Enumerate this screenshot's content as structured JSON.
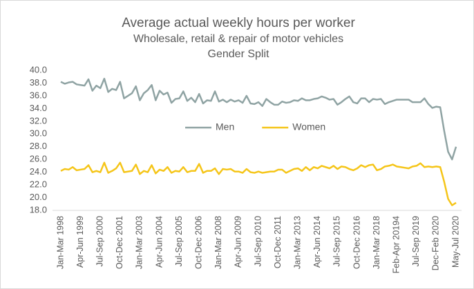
{
  "chart_data": {
    "type": "line",
    "title": "Average actual weekly  hours per worker",
    "subtitle": "Wholesale, retail & repair of motor vehicles",
    "subtitle2": "Gender Split",
    "categories": [
      "Jan-Mar 1998",
      null,
      null,
      null,
      null,
      "Apr-Jun 1999",
      null,
      null,
      null,
      null,
      "Jul-Sep 2000",
      null,
      null,
      null,
      null,
      "Oct-Dec 2001",
      null,
      null,
      null,
      null,
      "Jan-Mar 2003",
      null,
      null,
      null,
      null,
      "Apr-Jun 2004",
      null,
      null,
      null,
      null,
      "Jul-Sep 2005",
      null,
      null,
      null,
      null,
      "Oct-Dec 2006",
      null,
      null,
      null,
      null,
      "Jan-Mar 2008",
      null,
      null,
      null,
      null,
      "Apr-Jun 2009",
      null,
      null,
      null,
      null,
      "Jul-Sep 2010",
      null,
      null,
      null,
      null,
      "Oct-Dec 2011",
      null,
      null,
      null,
      null,
      "Jan-Mar 2013",
      null,
      null,
      null,
      null,
      "Apr-Jun 2014",
      null,
      null,
      null,
      null,
      "Jul-Sep 2015",
      null,
      null,
      null,
      null,
      "Oct-Dec 2016",
      null,
      null,
      null,
      null,
      "Jan-Mar 2018",
      null,
      null,
      null,
      null,
      "Feb-Apr 20194",
      null,
      null,
      null,
      null,
      "Jul-Sep 2019",
      null,
      null,
      null,
      null,
      "Dec-Feb 2020",
      null,
      null,
      null,
      null,
      "May-Jul 2020"
    ],
    "series": [
      {
        "name": "Men",
        "color": "#8fa3a3",
        "values": [
          38.2,
          37.9,
          38.1,
          38.2,
          37.8,
          37.7,
          37.6,
          38.6,
          36.8,
          37.6,
          37.2,
          38.7,
          36.6,
          37.1,
          36.9,
          38.2,
          35.6,
          36.0,
          36.4,
          37.5,
          35.3,
          36.4,
          36.9,
          37.7,
          35.3,
          36.8,
          36.2,
          36.5,
          34.9,
          35.5,
          35.6,
          36.7,
          35.2,
          35.7,
          35.0,
          36.3,
          34.8,
          35.3,
          35.2,
          36.7,
          35.1,
          35.4,
          35.0,
          35.4,
          35.1,
          35.3,
          34.9,
          36.0,
          34.8,
          34.7,
          35.0,
          34.4,
          35.5,
          35.0,
          34.6,
          34.6,
          35.1,
          34.9,
          35.0,
          35.3,
          35.2,
          35.6,
          35.3,
          35.3,
          35.5,
          35.6,
          35.9,
          35.7,
          35.4,
          35.5,
          34.6,
          35.0,
          35.5,
          35.9,
          35.0,
          34.8,
          35.6,
          35.6,
          35.0,
          35.5,
          35.4,
          35.5,
          34.7,
          35.0,
          35.2,
          35.4,
          35.4,
          35.4,
          35.4,
          35.0,
          35.0,
          35.0,
          35.6,
          34.7,
          34.1,
          34.3,
          34.2,
          30.5,
          27.2,
          26.0,
          28.0
        ]
      },
      {
        "name": "Women",
        "color": "#f5c518",
        "values": [
          24.2,
          24.5,
          24.4,
          24.8,
          24.3,
          24.4,
          24.5,
          25.1,
          24.0,
          24.2,
          24.0,
          25.5,
          23.9,
          24.2,
          24.6,
          25.5,
          24.0,
          24.1,
          24.2,
          25.2,
          23.7,
          24.2,
          24.0,
          25.1,
          23.8,
          24.4,
          24.2,
          24.8,
          23.9,
          24.2,
          24.1,
          24.8,
          24.0,
          24.2,
          24.2,
          25.3,
          23.9,
          24.2,
          24.2,
          24.6,
          23.7,
          24.5,
          24.4,
          24.5,
          24.1,
          24.1,
          23.9,
          24.5,
          24.0,
          23.9,
          24.1,
          23.9,
          24.0,
          24.1,
          24.1,
          24.4,
          24.4,
          23.9,
          24.2,
          24.5,
          24.6,
          24.2,
          24.8,
          24.3,
          24.8,
          24.6,
          25.0,
          24.8,
          24.6,
          25.0,
          24.5,
          24.9,
          24.8,
          24.5,
          24.3,
          24.6,
          25.1,
          24.8,
          25.1,
          25.2,
          24.3,
          24.5,
          24.9,
          25.0,
          25.2,
          24.9,
          24.8,
          24.7,
          24.6,
          24.9,
          25.0,
          25.4,
          24.8,
          24.9,
          24.8,
          24.9,
          24.8,
          22.5,
          19.8,
          18.8,
          19.2
        ]
      }
    ],
    "ylim": [
      18,
      40
    ],
    "yticks": [
      {
        "value": 18,
        "label": "18.0"
      },
      {
        "value": 20,
        "label": "20.0"
      },
      {
        "value": 22,
        "label": "22.0"
      },
      {
        "value": 24,
        "label": "24.0"
      },
      {
        "value": 26,
        "label": "26.0"
      },
      {
        "value": 28,
        "label": "28.0"
      },
      {
        "value": 30,
        "label": "30.0"
      },
      {
        "value": 32,
        "label": "32.0"
      },
      {
        "value": 34,
        "label": "34.0"
      },
      {
        "value": 36,
        "label": "36.0"
      },
      {
        "value": 38,
        "label": "38.0"
      },
      {
        "value": 40,
        "label": "40.0"
      }
    ],
    "grid": false,
    "legend": "center"
  }
}
